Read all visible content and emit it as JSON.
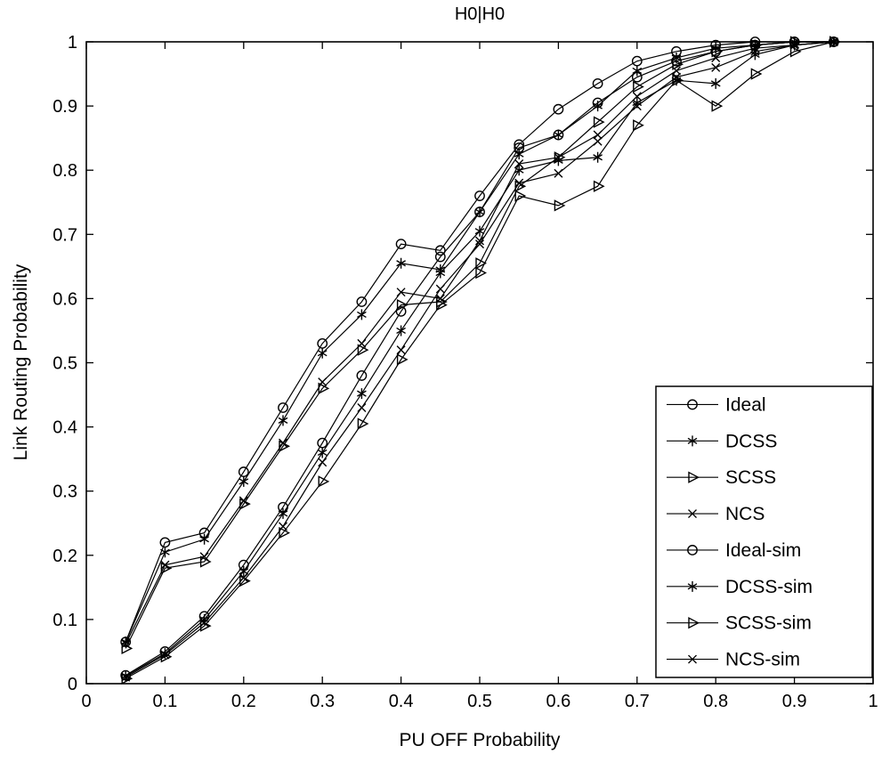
{
  "chart_data": {
    "type": "line",
    "title": "H0|H0",
    "xlabel": "PU OFF Probability",
    "ylabel": "Link Routing Probability",
    "xlim": [
      0,
      1
    ],
    "ylim": [
      0,
      1
    ],
    "grid": false,
    "legend_position": "inside-lower-right",
    "line_color": "#000000",
    "background": "#ffffff",
    "xtick_values": [
      0,
      0.1,
      0.2,
      0.3,
      0.4,
      0.5,
      0.6,
      0.7,
      0.8,
      0.9,
      1
    ],
    "xtick_labels": [
      "0",
      "0.1",
      "0.2",
      "0.3",
      "0.4",
      "0.5",
      "0.6",
      "0.7",
      "0.8",
      "0.9",
      "1"
    ],
    "ytick_values": [
      0,
      0.1,
      0.2,
      0.3,
      0.4,
      0.5,
      0.6,
      0.7,
      0.8,
      0.9,
      1
    ],
    "ytick_labels": [
      "0",
      "0.1",
      "0.2",
      "0.3",
      "0.4",
      "0.5",
      "0.6",
      "0.7",
      "0.8",
      "0.9",
      "1"
    ],
    "x": [
      0.05,
      0.1,
      0.15,
      0.2,
      0.25,
      0.3,
      0.35,
      0.4,
      0.45,
      0.5,
      0.55,
      0.6,
      0.65,
      0.7,
      0.75,
      0.8,
      0.85,
      0.9,
      0.95
    ],
    "series": [
      {
        "name": "Ideal",
        "marker": "circle",
        "values": [
          0.065,
          0.22,
          0.235,
          0.33,
          0.43,
          0.53,
          0.595,
          0.685,
          0.675,
          0.76,
          0.84,
          0.895,
          0.935,
          0.97,
          0.985,
          0.995,
          1.0,
          1.0,
          1.0
        ]
      },
      {
        "name": "DCSS",
        "marker": "asterisk",
        "values": [
          0.065,
          0.205,
          0.225,
          0.315,
          0.41,
          0.515,
          0.575,
          0.655,
          0.645,
          0.735,
          0.825,
          0.855,
          0.9,
          0.955,
          0.975,
          0.99,
          0.995,
          1.0,
          1.0
        ]
      },
      {
        "name": "SCSS",
        "marker": "triangle-right",
        "values": [
          0.055,
          0.18,
          0.19,
          0.28,
          0.37,
          0.46,
          0.52,
          0.59,
          0.595,
          0.655,
          0.775,
          0.82,
          0.875,
          0.93,
          0.965,
          0.985,
          0.995,
          1.0,
          1.0
        ]
      },
      {
        "name": "NCS",
        "marker": "x",
        "values": [
          0.062,
          0.185,
          0.198,
          0.285,
          0.375,
          0.47,
          0.53,
          0.61,
          0.6,
          0.69,
          0.81,
          0.82,
          0.855,
          0.915,
          0.955,
          0.975,
          0.99,
          0.995,
          1.0
        ]
      },
      {
        "name": "Ideal-sim",
        "marker": "circle",
        "values": [
          0.013,
          0.05,
          0.105,
          0.185,
          0.275,
          0.375,
          0.48,
          0.58,
          0.665,
          0.735,
          0.835,
          0.855,
          0.905,
          0.945,
          0.97,
          0.985,
          0.995,
          1.0,
          1.0
        ]
      },
      {
        "name": "DCSS-sim",
        "marker": "asterisk",
        "values": [
          0.012,
          0.047,
          0.1,
          0.175,
          0.265,
          0.36,
          0.452,
          0.55,
          0.64,
          0.705,
          0.8,
          0.815,
          0.82,
          0.905,
          0.94,
          0.935,
          0.98,
          0.995,
          1.0
        ]
      },
      {
        "name": "SCSS-sim",
        "marker": "triangle-right",
        "values": [
          0.008,
          0.042,
          0.09,
          0.16,
          0.235,
          0.315,
          0.405,
          0.505,
          0.59,
          0.64,
          0.76,
          0.745,
          0.775,
          0.87,
          0.94,
          0.9,
          0.95,
          0.985,
          1.0
        ]
      },
      {
        "name": "NCS-sim",
        "marker": "x",
        "values": [
          0.01,
          0.045,
          0.095,
          0.165,
          0.245,
          0.345,
          0.43,
          0.52,
          0.615,
          0.685,
          0.78,
          0.795,
          0.845,
          0.9,
          0.945,
          0.96,
          0.985,
          0.995,
          1.0
        ]
      }
    ]
  }
}
